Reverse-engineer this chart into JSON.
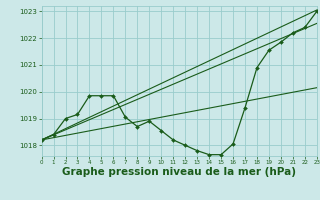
{
  "bg_color": "#cce8e8",
  "grid_color": "#99cccc",
  "line_color": "#1a5c1a",
  "xlabel": "Graphe pression niveau de la mer (hPa)",
  "xlabel_fontsize": 7.5,
  "xlim": [
    0,
    23
  ],
  "ylim": [
    1017.6,
    1023.2
  ],
  "yticks": [
    1018,
    1019,
    1020,
    1021,
    1022,
    1023
  ],
  "xticks": [
    0,
    1,
    2,
    3,
    4,
    5,
    6,
    7,
    8,
    9,
    10,
    11,
    12,
    13,
    14,
    15,
    16,
    17,
    18,
    19,
    20,
    21,
    22,
    23
  ],
  "main_x": [
    0,
    1,
    2,
    3,
    4,
    5,
    6,
    7,
    8,
    9,
    10,
    11,
    12,
    13,
    14,
    15,
    16,
    17,
    18,
    19,
    20,
    21,
    22,
    23
  ],
  "main_y": [
    1018.2,
    1018.4,
    1019.0,
    1019.15,
    1019.85,
    1019.85,
    1019.85,
    1019.05,
    1018.7,
    1018.9,
    1018.55,
    1018.2,
    1018.0,
    1017.8,
    1017.65,
    1017.65,
    1018.05,
    1019.4,
    1020.9,
    1021.55,
    1021.85,
    1022.2,
    1022.4,
    1023.0
  ],
  "straight_lines": [
    {
      "x": [
        0,
        23
      ],
      "y": [
        1018.2,
        1023.05
      ]
    },
    {
      "x": [
        0,
        23
      ],
      "y": [
        1018.2,
        1022.55
      ]
    },
    {
      "x": [
        0,
        23
      ],
      "y": [
        1018.2,
        1020.15
      ]
    }
  ]
}
